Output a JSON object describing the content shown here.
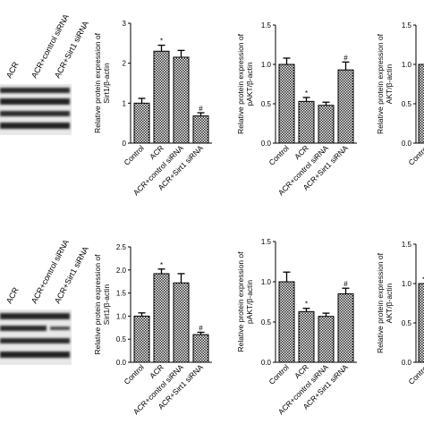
{
  "blot_headers": {
    "top": [
      "ACR",
      "ACR+control siRNA",
      "ACR+Sirt1 siRNA"
    ],
    "bottom": [
      "ACR",
      "ACR+control siRNA",
      "ACR+Sirt1 siRNA"
    ]
  },
  "chart_data": [
    {
      "type": "bar",
      "panel": "top-sirt1",
      "categories": [
        "Control",
        "ACR",
        "ACR+control siRNA",
        "ACR+Sirt1 siRNA"
      ],
      "values": [
        1.0,
        2.3,
        2.15,
        0.68
      ],
      "errors": [
        0.12,
        0.15,
        0.17,
        0.08
      ],
      "annotations": [
        "",
        "*",
        "",
        "#"
      ],
      "ylabel_line1": "Relative protein expression of",
      "ylabel_line2": "Sirt1/β-actin",
      "ylim": [
        0,
        3
      ],
      "yticks": [
        "0",
        "1",
        "2",
        "3"
      ],
      "tick_values": [
        0,
        1,
        2,
        3
      ]
    },
    {
      "type": "bar",
      "panel": "top-pakt",
      "categories": [
        "Control",
        "ACR",
        "ACR+control siRNA",
        "ACR+Sirt1 siRNA"
      ],
      "values": [
        1.0,
        0.53,
        0.48,
        0.93
      ],
      "errors": [
        0.08,
        0.05,
        0.04,
        0.1
      ],
      "annotations": [
        "",
        "*",
        "",
        "#"
      ],
      "ylabel_line1": "Relative protein expression of",
      "ylabel_line2": "pAKT/β-actin",
      "ylim": [
        0,
        1.5
      ],
      "yticks": [
        "0.0",
        "0.5",
        "1.0",
        "1.5"
      ],
      "tick_values": [
        0,
        0.5,
        1,
        1.5
      ]
    },
    {
      "type": "bar",
      "panel": "top-akt",
      "categories": [
        "Control"
      ],
      "values": [
        1.0
      ],
      "errors": [
        0.0
      ],
      "annotations": [
        ""
      ],
      "ylabel_line1": "Relative protein expression of",
      "ylabel_line2": "AKT/β-actin",
      "ylim": [
        0,
        1.5
      ],
      "yticks": [
        "0.0",
        "0.5",
        "1.0",
        "1.5"
      ],
      "tick_values": [
        0,
        0.5,
        1,
        1.5
      ]
    },
    {
      "type": "bar",
      "panel": "bottom-sirt1",
      "categories": [
        "Control",
        "ACR",
        "ACR+control siRNA",
        "ACR+Sirt1 siRNA"
      ],
      "values": [
        1.0,
        1.92,
        1.72,
        0.6
      ],
      "errors": [
        0.07,
        0.1,
        0.2,
        0.05
      ],
      "annotations": [
        "",
        "*",
        "",
        "#"
      ],
      "ylabel_line1": "Relative protein expression of",
      "ylabel_line2": "Sirt1/β-actin",
      "ylim": [
        0,
        2.5
      ],
      "yticks": [
        "0.0",
        "0.5",
        "1.0",
        "1.5",
        "2.0",
        "2.5"
      ],
      "tick_values": [
        0,
        0.5,
        1,
        1.5,
        2,
        2.5
      ]
    },
    {
      "type": "bar",
      "panel": "bottom-pakt",
      "categories": [
        "Control",
        "ACR",
        "ACR+control siRNA",
        "ACR+Sirt1 siRNA"
      ],
      "values": [
        1.0,
        0.63,
        0.57,
        0.85
      ],
      "errors": [
        0.12,
        0.04,
        0.04,
        0.07
      ],
      "annotations": [
        "",
        "*",
        "",
        "#"
      ],
      "ylabel_line1": "Relative protein expression of",
      "ylabel_line2": "pAKT/β-actin",
      "ylim": [
        0,
        1.5
      ],
      "yticks": [
        "0.0",
        "0.5",
        "1.0",
        "1.5"
      ],
      "tick_values": [
        0,
        0.5,
        1,
        1.5
      ]
    },
    {
      "type": "bar",
      "panel": "bottom-akt",
      "categories": [
        "Control"
      ],
      "values": [
        1.0
      ],
      "errors": [
        0.07
      ],
      "annotations": [
        ""
      ],
      "ylabel_line1": "Relative protein expression of",
      "ylabel_line2": "AKT/β-actin",
      "ylim": [
        0,
        1.5
      ],
      "yticks": [
        "0.0",
        "0.5",
        "1.0",
        "1.5"
      ],
      "tick_values": [
        0,
        0.5,
        1,
        1.5
      ]
    }
  ]
}
